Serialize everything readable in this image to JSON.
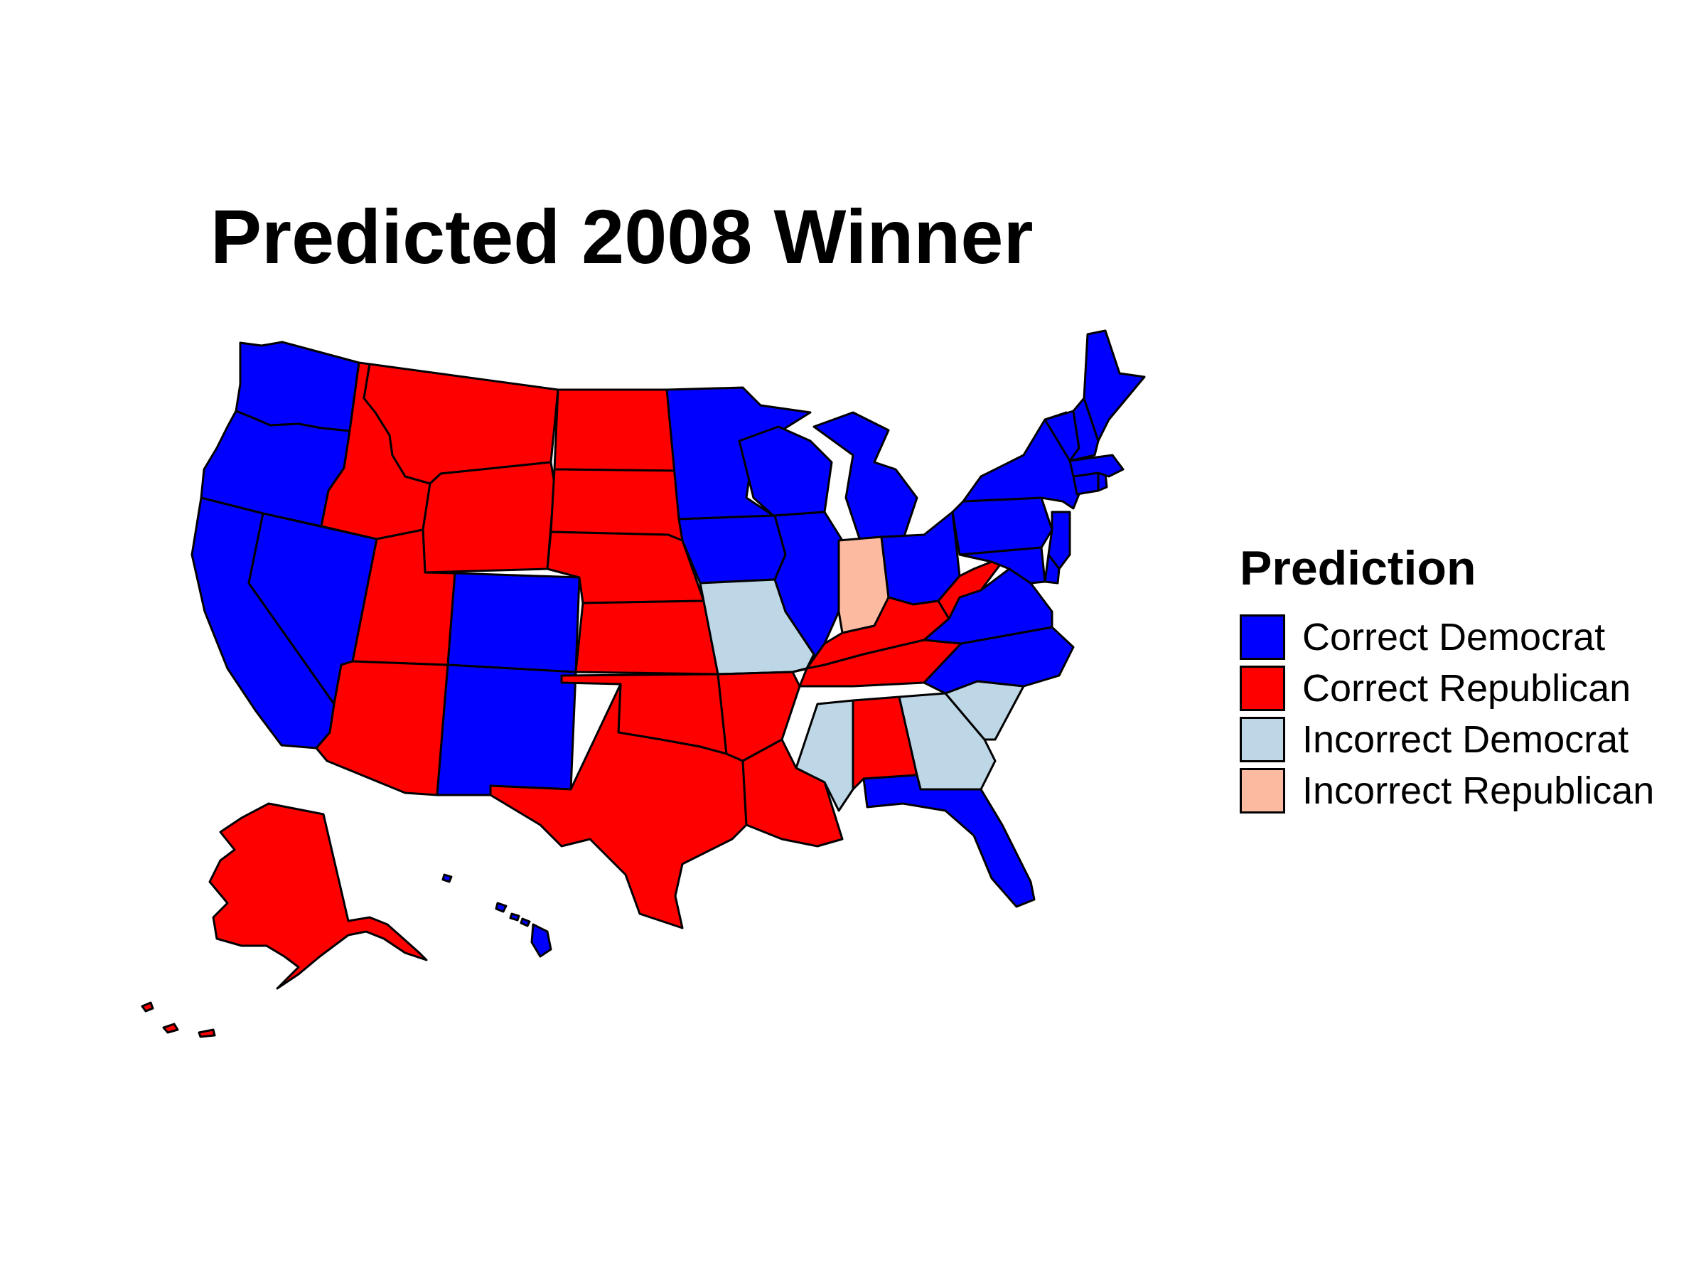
{
  "title": "Predicted 2008 Winner",
  "legend": {
    "title": "Prediction",
    "items": [
      {
        "label": "Correct Democrat",
        "color": "#0000ff"
      },
      {
        "label": "Correct Republican",
        "color": "#ff0000"
      },
      {
        "label": "Incorrect Democrat",
        "color": "#bdd7e7"
      },
      {
        "label": "Incorrect Republican",
        "color": "#fcbba1"
      }
    ]
  },
  "states": [
    {
      "name": "Washington",
      "category": "Correct Democrat"
    },
    {
      "name": "Oregon",
      "category": "Correct Democrat"
    },
    {
      "name": "California",
      "category": "Correct Democrat"
    },
    {
      "name": "Nevada",
      "category": "Correct Democrat"
    },
    {
      "name": "Idaho",
      "category": "Correct Republican"
    },
    {
      "name": "Montana",
      "category": "Correct Republican"
    },
    {
      "name": "Wyoming",
      "category": "Correct Republican"
    },
    {
      "name": "Utah",
      "category": "Correct Republican"
    },
    {
      "name": "Arizona",
      "category": "Correct Republican"
    },
    {
      "name": "Colorado",
      "category": "Correct Democrat"
    },
    {
      "name": "New Mexico",
      "category": "Correct Democrat"
    },
    {
      "name": "North Dakota",
      "category": "Correct Republican"
    },
    {
      "name": "South Dakota",
      "category": "Correct Republican"
    },
    {
      "name": "Nebraska",
      "category": "Correct Republican"
    },
    {
      "name": "Kansas",
      "category": "Correct Republican"
    },
    {
      "name": "Oklahoma",
      "category": "Correct Republican"
    },
    {
      "name": "Texas",
      "category": "Correct Republican"
    },
    {
      "name": "Minnesota",
      "category": "Correct Democrat"
    },
    {
      "name": "Iowa",
      "category": "Correct Democrat"
    },
    {
      "name": "Missouri",
      "category": "Incorrect Democrat"
    },
    {
      "name": "Arkansas",
      "category": "Correct Republican"
    },
    {
      "name": "Louisiana",
      "category": "Correct Republican"
    },
    {
      "name": "Wisconsin",
      "category": "Correct Democrat"
    },
    {
      "name": "Illinois",
      "category": "Correct Democrat"
    },
    {
      "name": "Michigan",
      "category": "Correct Democrat"
    },
    {
      "name": "Indiana",
      "category": "Incorrect Republican"
    },
    {
      "name": "Ohio",
      "category": "Correct Democrat"
    },
    {
      "name": "Kentucky",
      "category": "Correct Republican"
    },
    {
      "name": "Tennessee",
      "category": "Correct Republican"
    },
    {
      "name": "Mississippi",
      "category": "Incorrect Democrat"
    },
    {
      "name": "Alabama",
      "category": "Correct Republican"
    },
    {
      "name": "Georgia",
      "category": "Incorrect Democrat"
    },
    {
      "name": "Florida",
      "category": "Correct Democrat"
    },
    {
      "name": "South Carolina",
      "category": "Incorrect Democrat"
    },
    {
      "name": "North Carolina",
      "category": "Correct Democrat"
    },
    {
      "name": "Virginia",
      "category": "Correct Democrat"
    },
    {
      "name": "West Virginia",
      "category": "Correct Republican"
    },
    {
      "name": "Pennsylvania",
      "category": "Correct Democrat"
    },
    {
      "name": "New York",
      "category": "Correct Democrat"
    },
    {
      "name": "New Jersey",
      "category": "Correct Democrat"
    },
    {
      "name": "Delaware",
      "category": "Correct Democrat"
    },
    {
      "name": "Maryland",
      "category": "Correct Democrat"
    },
    {
      "name": "Connecticut",
      "category": "Correct Democrat"
    },
    {
      "name": "Rhode Island",
      "category": "Correct Democrat"
    },
    {
      "name": "Massachusetts",
      "category": "Correct Democrat"
    },
    {
      "name": "Vermont",
      "category": "Correct Democrat"
    },
    {
      "name": "New Hampshire",
      "category": "Correct Democrat"
    },
    {
      "name": "Maine",
      "category": "Correct Democrat"
    },
    {
      "name": "Alaska",
      "category": "Correct Republican"
    },
    {
      "name": "Hawaii",
      "category": "Correct Democrat"
    }
  ]
}
